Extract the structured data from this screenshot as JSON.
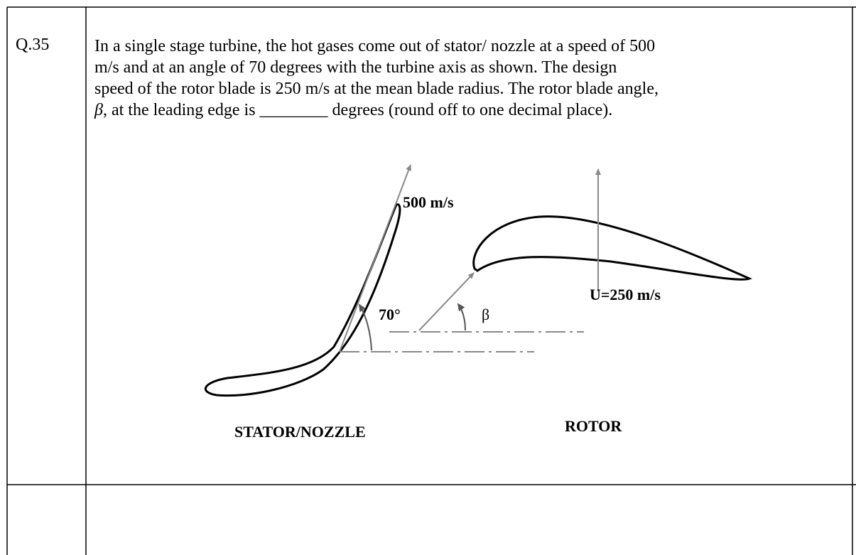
{
  "question": {
    "number": "Q.35",
    "lines": [
      "In a single stage turbine, the hot gases come out of stator/ nozzle at a speed of 500",
      "m/s and at an angle of 70 degrees with the turbine axis as shown. The design",
      "speed of the rotor blade is 250 m/s at the mean blade radius. The rotor blade angle,"
    ],
    "beta_symbol": "β",
    "last_line_rest": ", at the leading edge is ________ degrees (round off to one decimal place)."
  },
  "diagram": {
    "velocity_label": "500 m/s",
    "angle_label": "70°",
    "beta_label": "β",
    "blade_speed_label": "U=250 m/s",
    "stator_label": "STATOR/NOZZLE",
    "rotor_label": "ROTOR"
  }
}
